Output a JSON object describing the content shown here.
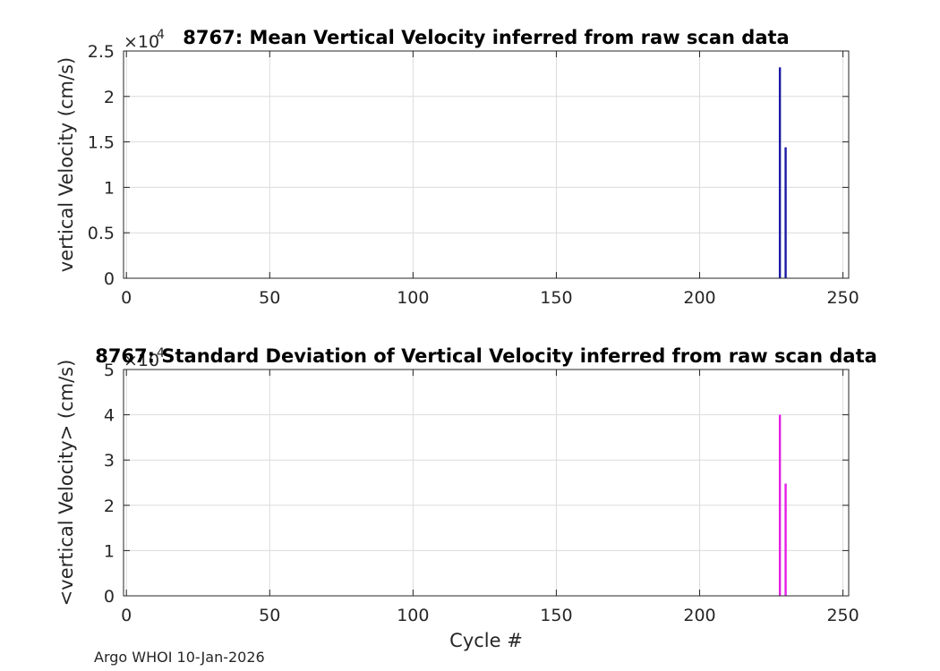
{
  "figure": {
    "footer": "Argo WHOI 10-Jan-2026"
  },
  "chart_data": [
    {
      "type": "bar",
      "title": "8767: Mean Vertical Velocity inferred from raw scan data",
      "xlabel": "",
      "ylabel": "vertical Velocity (cm/s)",
      "exponent_label": "×10",
      "exponent_power": "4",
      "xlim": [
        -1,
        252
      ],
      "ylim": [
        0,
        2.5
      ],
      "x_ticks": [
        0,
        50,
        100,
        150,
        200,
        250
      ],
      "y_ticks": [
        0,
        0.5,
        1,
        1.5,
        2,
        2.5
      ],
      "y_tick_labels": [
        "0",
        "0.5",
        "1",
        "1.5",
        "2",
        "2.5"
      ],
      "grid": true,
      "color": "#1a1aa6",
      "x": [
        228,
        230
      ],
      "values": [
        2.32,
        1.44
      ]
    },
    {
      "type": "bar",
      "title": "8767: Standard Deviation of Vertical Velocity inferred from raw scan data",
      "xlabel": "Cycle #",
      "ylabel": "<vertical Velocity> (cm/s)",
      "exponent_label": "×10",
      "exponent_power": "4",
      "xlim": [
        -1,
        252
      ],
      "ylim": [
        0,
        5
      ],
      "x_ticks": [
        0,
        50,
        100,
        150,
        200,
        250
      ],
      "y_ticks": [
        0,
        1,
        2,
        3,
        4,
        5
      ],
      "y_tick_labels": [
        "0",
        "1",
        "2",
        "3",
        "4",
        "5"
      ],
      "grid": true,
      "color": "#e61ee6",
      "x": [
        228,
        230
      ],
      "values": [
        4.0,
        2.48
      ]
    }
  ]
}
